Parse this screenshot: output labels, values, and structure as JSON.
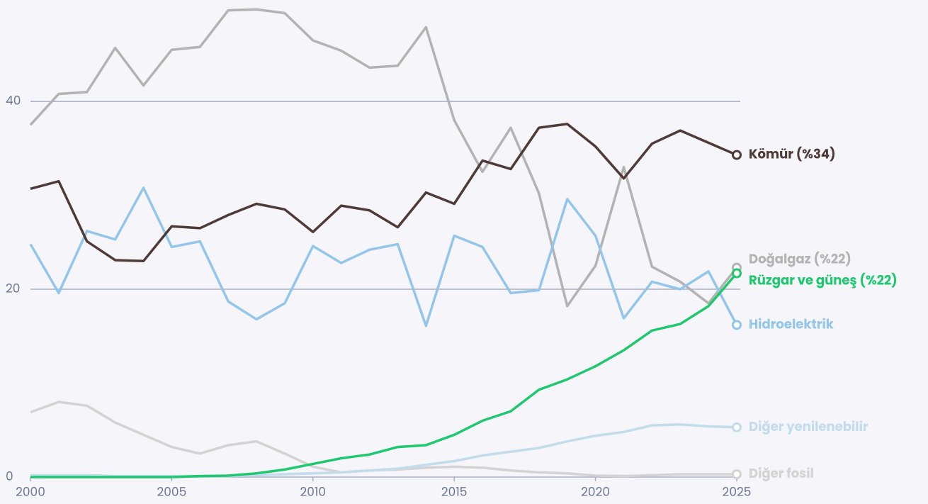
{
  "chart_data": {
    "type": "line",
    "x": [
      2000,
      2001,
      2002,
      2003,
      2004,
      2005,
      2006,
      2007,
      2008,
      2009,
      2010,
      2011,
      2012,
      2013,
      2014,
      2015,
      2016,
      2017,
      2018,
      2019,
      2020,
      2021,
      2022,
      2023,
      2024,
      2025
    ],
    "xlim": [
      2000,
      2025
    ],
    "xticks": [
      2000,
      2005,
      2010,
      2015,
      2020,
      2025
    ],
    "ylim": [
      0,
      50.8
    ],
    "yticks": [
      0,
      20,
      40
    ],
    "grid": true,
    "series": [
      {
        "name": "Diğer fosil",
        "color": "#d3d3d3",
        "values": [
          6.9,
          8.0,
          7.6,
          5.8,
          4.5,
          3.2,
          2.5,
          3.4,
          3.8,
          2.5,
          1.1,
          0.5,
          0.7,
          0.8,
          1.0,
          1.1,
          1.0,
          0.7,
          0.5,
          0.4,
          0.15,
          0.1,
          0.2,
          0.3,
          0.3,
          0.3
        ]
      },
      {
        "name": "Diğer yenilenebilir",
        "color": "#c3dcec",
        "values": [
          0.2,
          0.2,
          0.2,
          0.1,
          0.1,
          0.1,
          0.1,
          0.1,
          0.2,
          0.3,
          0.4,
          0.5,
          0.7,
          0.9,
          1.3,
          1.7,
          2.3,
          2.7,
          3.1,
          3.8,
          4.4,
          4.8,
          5.5,
          5.6,
          5.4,
          5.3
        ]
      },
      {
        "name": "Doğalgaz (%22)",
        "color": "#b3b3b3",
        "values": [
          37.5,
          40.8,
          41.0,
          45.7,
          41.7,
          45.5,
          45.8,
          49.7,
          49.8,
          49.4,
          46.5,
          45.4,
          43.6,
          43.8,
          47.9,
          38.0,
          32.5,
          37.2,
          30.2,
          18.2,
          22.5,
          33.0,
          22.4,
          20.8,
          18.5,
          22.3
        ]
      },
      {
        "name": "Hidroelektrik",
        "color": "#93c6e8",
        "values": [
          24.8,
          19.6,
          26.2,
          25.3,
          30.8,
          24.5,
          25.1,
          18.7,
          16.8,
          18.5,
          24.6,
          22.8,
          24.2,
          24.8,
          16.1,
          25.7,
          24.5,
          19.6,
          19.9,
          29.6,
          25.7,
          16.9,
          20.8,
          20.0,
          21.9,
          16.2
        ]
      },
      {
        "name": "Kömür (%34)",
        "color": "#4e3a36",
        "values": [
          30.7,
          31.5,
          25.1,
          23.1,
          23.0,
          26.7,
          26.5,
          27.9,
          29.1,
          28.5,
          26.1,
          28.9,
          28.4,
          26.6,
          30.3,
          29.1,
          33.7,
          32.8,
          37.2,
          37.6,
          35.2,
          31.8,
          35.5,
          36.9,
          35.6,
          34.3
        ]
      },
      {
        "name": "Rüzgar ve güneş (%22)",
        "color": "#1fc86f",
        "values": [
          0,
          0,
          0,
          0,
          0,
          0,
          0.1,
          0.15,
          0.4,
          0.8,
          1.4,
          2.0,
          2.4,
          3.2,
          3.4,
          4.5,
          6.0,
          7.0,
          9.3,
          10.4,
          11.8,
          13.5,
          15.6,
          16.3,
          18.2,
          21.7
        ]
      }
    ]
  }
}
